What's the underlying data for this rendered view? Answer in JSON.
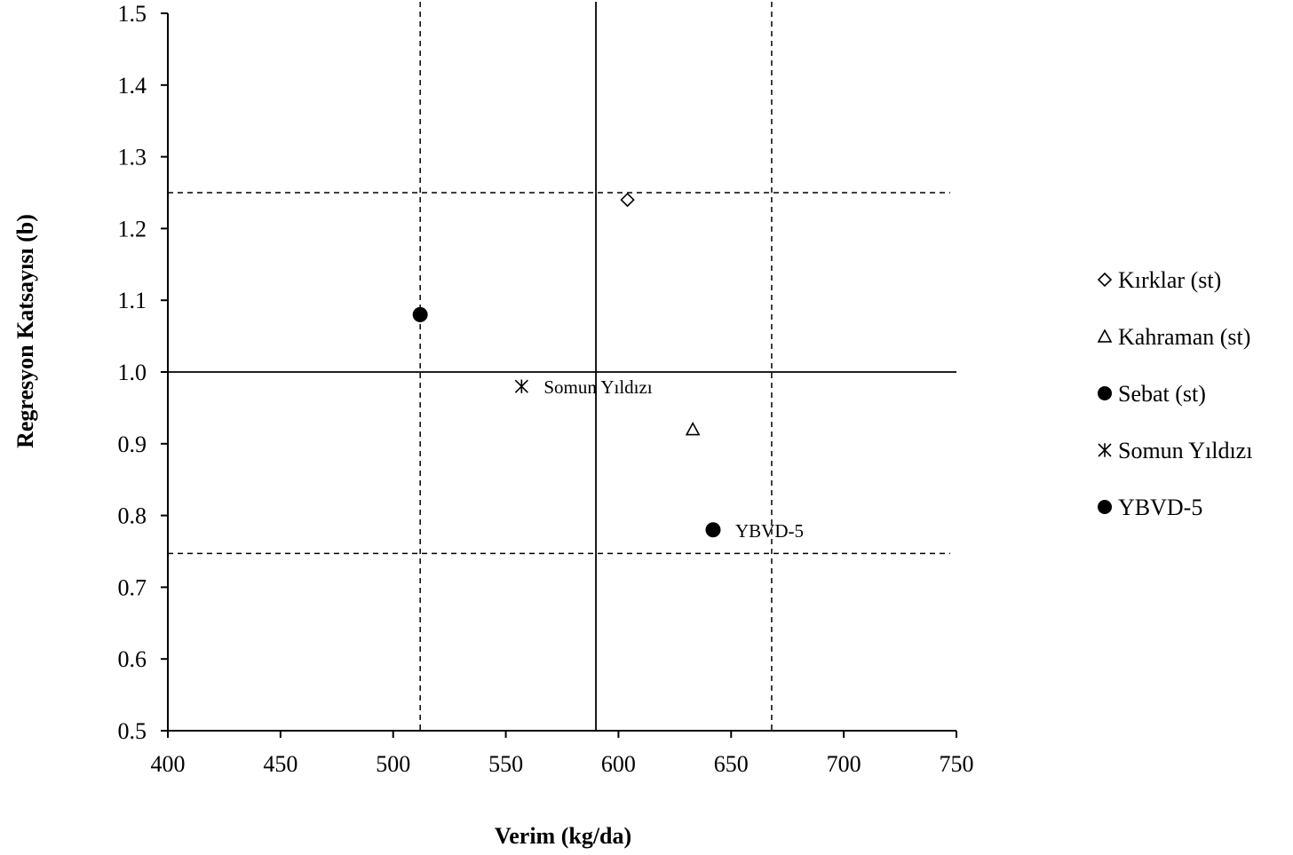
{
  "chart_data": {
    "type": "scatter",
    "title": "",
    "xlabel": "Verim (kg/da)",
    "ylabel": "Regresyon Katsayısı (b)",
    "xlim": [
      400,
      750
    ],
    "ylim": [
      0.5,
      1.5
    ],
    "x_ticks": [
      400,
      450,
      500,
      550,
      600,
      650,
      700,
      750
    ],
    "y_ticks": [
      0.5,
      0.6,
      0.7,
      0.8,
      0.9,
      1.0,
      1.1,
      1.2,
      1.3,
      1.4,
      1.5
    ],
    "x_tick_labels": [
      "400",
      "450",
      "500",
      "550",
      "600",
      "650",
      "700",
      "750"
    ],
    "y_tick_labels": [
      "0.5",
      "0.6",
      "0.7",
      "0.8",
      "0.9",
      "1.0",
      "1.1",
      "1.2",
      "1.3",
      "1.4",
      "1.5"
    ],
    "grid": false,
    "legend_position": "right",
    "series": [
      {
        "name": "Kırklar (st)",
        "marker": "diamond",
        "x": [
          604
        ],
        "y": [
          1.24
        ],
        "point_label": ""
      },
      {
        "name": "Kahraman (st)",
        "marker": "triangle",
        "x": [
          633
        ],
        "y": [
          0.92
        ],
        "point_label": ""
      },
      {
        "name": "Sebat (st)",
        "marker": "filled-circle",
        "x": [
          512
        ],
        "y": [
          1.08
        ],
        "point_label": ""
      },
      {
        "name": "Somun Yıldızı",
        "marker": "asterisk",
        "x": [
          557
        ],
        "y": [
          0.98
        ],
        "point_label": "Somun Yıldızı"
      },
      {
        "name": "YBVD-5",
        "marker": "filled-circle",
        "x": [
          642
        ],
        "y": [
          0.78
        ],
        "point_label": "YBVD-5"
      }
    ],
    "reference_lines": [
      {
        "orientation": "vertical",
        "style": "solid",
        "value": 590
      },
      {
        "orientation": "horizontal",
        "style": "solid",
        "value": 1.0
      },
      {
        "orientation": "vertical",
        "style": "dashed",
        "value": 512
      },
      {
        "orientation": "vertical",
        "style": "dashed",
        "value": 668
      },
      {
        "orientation": "horizontal",
        "style": "dashed",
        "value": 1.25
      },
      {
        "orientation": "horizontal",
        "style": "dashed",
        "value": 0.747
      }
    ]
  }
}
